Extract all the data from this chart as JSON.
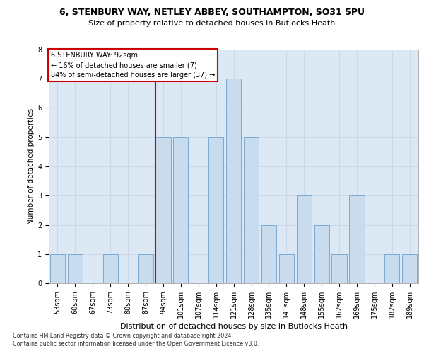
{
  "title1": "6, STENBURY WAY, NETLEY ABBEY, SOUTHAMPTON, SO31 5PU",
  "title2": "Size of property relative to detached houses in Butlocks Heath",
  "xlabel": "Distribution of detached houses by size in Butlocks Heath",
  "ylabel": "Number of detached properties",
  "categories": [
    "53sqm",
    "60sqm",
    "67sqm",
    "73sqm",
    "80sqm",
    "87sqm",
    "94sqm",
    "101sqm",
    "107sqm",
    "114sqm",
    "121sqm",
    "128sqm",
    "135sqm",
    "141sqm",
    "148sqm",
    "155sqm",
    "162sqm",
    "169sqm",
    "175sqm",
    "182sqm",
    "189sqm"
  ],
  "values": [
    1,
    1,
    0,
    1,
    0,
    1,
    5,
    5,
    0,
    5,
    7,
    5,
    2,
    1,
    3,
    2,
    1,
    3,
    0,
    1,
    1
  ],
  "bar_color": "#c9dcee",
  "bar_edge_color": "#7aaad4",
  "annotation_line1": "6 STENBURY WAY: 92sqm",
  "annotation_line2": "← 16% of detached houses are smaller (7)",
  "annotation_line3": "84% of semi-detached houses are larger (37) →",
  "annotation_box_color": "#ffffff",
  "annotation_box_edge_color": "#cc0000",
  "subject_line_color": "#cc0000",
  "subject_bin_index": 6,
  "ylim": [
    0,
    8
  ],
  "yticks": [
    0,
    1,
    2,
    3,
    4,
    5,
    6,
    7,
    8
  ],
  "footer1": "Contains HM Land Registry data © Crown copyright and database right 2024.",
  "footer2": "Contains public sector information licensed under the Open Government Licence v3.0.",
  "grid_color": "#ccd9e8",
  "background_color": "#dce9f5",
  "title1_fontsize": 9.0,
  "title2_fontsize": 8.0,
  "xlabel_fontsize": 8.0,
  "ylabel_fontsize": 7.5,
  "tick_fontsize": 7.0,
  "annot_fontsize": 7.0,
  "footer_fontsize": 5.8
}
